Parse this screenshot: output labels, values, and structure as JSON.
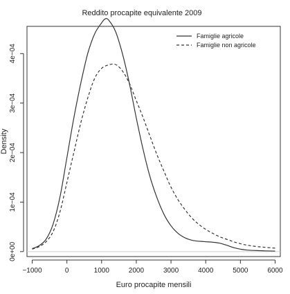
{
  "chart_data": {
    "type": "line",
    "title": "Reddito procapite equivalente 2009",
    "xlabel": "Euro procapite mensili",
    "ylabel": "Density",
    "xlim": [
      -1150,
      6150
    ],
    "ylim": [
      -1e-05,
      0.000455
    ],
    "x_ticks": [
      -1000,
      0,
      1000,
      2000,
      3000,
      4000,
      5000,
      6000
    ],
    "x_tick_labels": [
      "−1000",
      "0",
      "1000",
      "2000",
      "3000",
      "4000",
      "5000",
      "6000"
    ],
    "y_ticks": [
      0,
      0.0001,
      0.0002,
      0.0003,
      0.0004
    ],
    "y_tick_labels": [
      "0e+00",
      "1e−04",
      "2e−04",
      "3e−04",
      "4e−04"
    ],
    "legend_position": "top-right",
    "grid": false,
    "series": [
      {
        "name": "Famiglie agricole",
        "style": "solid",
        "color": "#333333",
        "points": [
          [
            -1000,
            6e-06
          ],
          [
            -800,
            1.2e-05
          ],
          [
            -600,
            2.5e-05
          ],
          [
            -400,
            5.5e-05
          ],
          [
            -200,
            0.00011
          ],
          [
            0,
            0.00019
          ],
          [
            200,
            0.00027
          ],
          [
            400,
            0.00034
          ],
          [
            600,
            0.0004
          ],
          [
            800,
            0.00044
          ],
          [
            1000,
            0.000462
          ],
          [
            1100,
            0.00047
          ],
          [
            1200,
            0.000468
          ],
          [
            1400,
            0.000445
          ],
          [
            1600,
            0.0004
          ],
          [
            1800,
            0.00034
          ],
          [
            2000,
            0.00027
          ],
          [
            2200,
            0.000205
          ],
          [
            2400,
            0.00015
          ],
          [
            2600,
            0.000108
          ],
          [
            2800,
            7.5e-05
          ],
          [
            3000,
            5.2e-05
          ],
          [
            3200,
            3.7e-05
          ],
          [
            3400,
            2.8e-05
          ],
          [
            3600,
            2.3e-05
          ],
          [
            3800,
            2.1e-05
          ],
          [
            4000,
            2e-05
          ],
          [
            4200,
            1.9e-05
          ],
          [
            4400,
            1.7e-05
          ],
          [
            4600,
            1.3e-05
          ],
          [
            4800,
            8e-06
          ],
          [
            5000,
            5e-06
          ],
          [
            5200,
            3e-06
          ],
          [
            5500,
            2e-06
          ],
          [
            6000,
            1e-06
          ]
        ]
      },
      {
        "name": "Famiglie non agricole",
        "style": "dashed",
        "color": "#333333",
        "points": [
          [
            -1000,
            5e-06
          ],
          [
            -800,
            1e-05
          ],
          [
            -600,
            2e-05
          ],
          [
            -400,
            4e-05
          ],
          [
            -200,
            8e-05
          ],
          [
            0,
            0.00014
          ],
          [
            200,
            0.0002
          ],
          [
            400,
            0.00026
          ],
          [
            600,
            0.00031
          ],
          [
            800,
            0.00035
          ],
          [
            1000,
            0.00037
          ],
          [
            1200,
            0.000377
          ],
          [
            1400,
            0.000378
          ],
          [
            1600,
            0.000365
          ],
          [
            1800,
            0.00034
          ],
          [
            2000,
            0.000305
          ],
          [
            2200,
            0.00027
          ],
          [
            2400,
            0.000232
          ],
          [
            2600,
            0.000195
          ],
          [
            2800,
            0.000162
          ],
          [
            3000,
            0.00013
          ],
          [
            3200,
            0.000105
          ],
          [
            3400,
            8.5e-05
          ],
          [
            3600,
            6.8e-05
          ],
          [
            3800,
            5.5e-05
          ],
          [
            4000,
            4.5e-05
          ],
          [
            4200,
            3.7e-05
          ],
          [
            4400,
            3e-05
          ],
          [
            4600,
            2.5e-05
          ],
          [
            4800,
            2e-05
          ],
          [
            5000,
            1.6e-05
          ],
          [
            5200,
            1.3e-05
          ],
          [
            5500,
            1e-05
          ],
          [
            6000,
            7e-06
          ]
        ]
      }
    ]
  }
}
